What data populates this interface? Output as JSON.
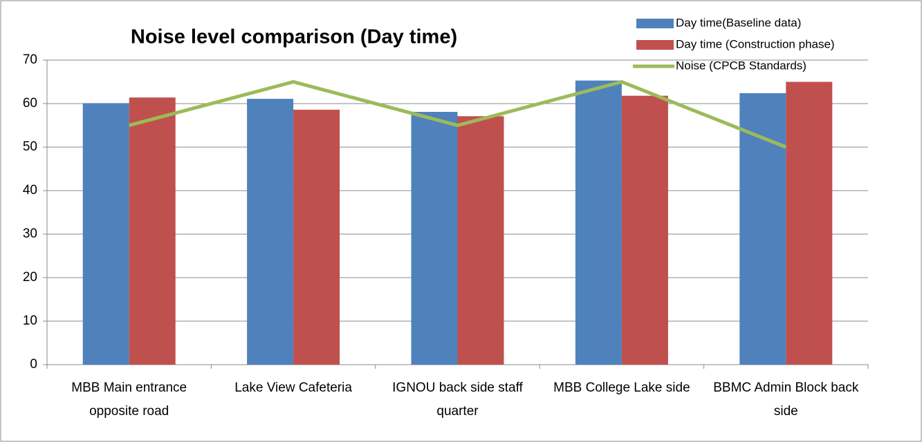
{
  "chart_data": {
    "type": "bar",
    "title": "Noise level comparison (Day time)",
    "categories": [
      "MBB Main entrance opposite road",
      "Lake View Cafeteria",
      "IGNOU back side staff quarter",
      "MBB College Lake side",
      "BBMC Admin Block back side"
    ],
    "series": [
      {
        "name": "Day time(Baseline data)",
        "color": "#4f81bd",
        "values": [
          60.1,
          61.1,
          58.1,
          65.3,
          62.4
        ]
      },
      {
        "name": "Day time (Construction phase)",
        "color": "#c0504d",
        "values": [
          61.4,
          58.6,
          57.1,
          61.8,
          65.0
        ]
      },
      {
        "name": "Noise (CPCB Standards)",
        "color": "#9bbb59",
        "type": "line",
        "values": [
          55,
          65,
          55,
          65,
          50
        ]
      }
    ],
    "ylim": [
      0,
      70
    ],
    "yticks": [
      0,
      10,
      20,
      30,
      40,
      50,
      60,
      70
    ],
    "grid": true,
    "legend": "top-right"
  }
}
